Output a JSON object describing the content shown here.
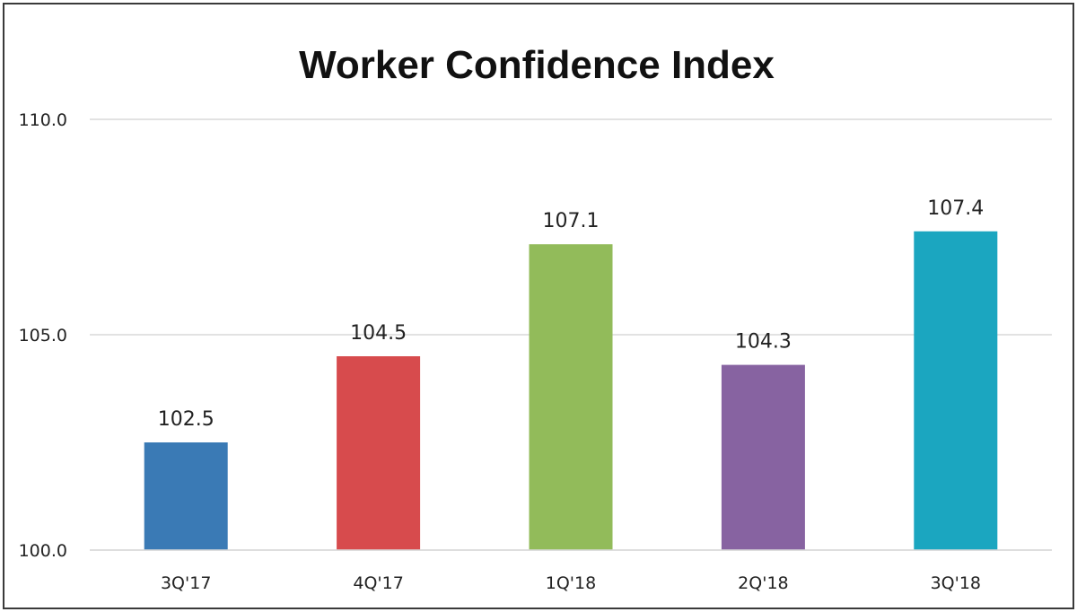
{
  "chart_data": {
    "type": "bar",
    "title": "Worker Confidence Index",
    "categories": [
      "3Q'17",
      "4Q'17",
      "1Q'18",
      "2Q'18",
      "3Q'18"
    ],
    "values": [
      102.5,
      104.5,
      107.1,
      104.3,
      107.4
    ],
    "value_labels": [
      "102.5",
      "104.5",
      "107.1",
      "104.3",
      "107.4"
    ],
    "colors": [
      "#3a7ab5",
      "#d74b4d",
      "#92bb5a",
      "#8763a1",
      "#1ba6c0"
    ],
    "ylim": [
      100.0,
      110.0
    ],
    "yticks": [
      100.0,
      105.0,
      110.0
    ],
    "ytick_labels": [
      "100.0",
      "105.0",
      "110.0"
    ],
    "grid": true,
    "legend": "none"
  }
}
